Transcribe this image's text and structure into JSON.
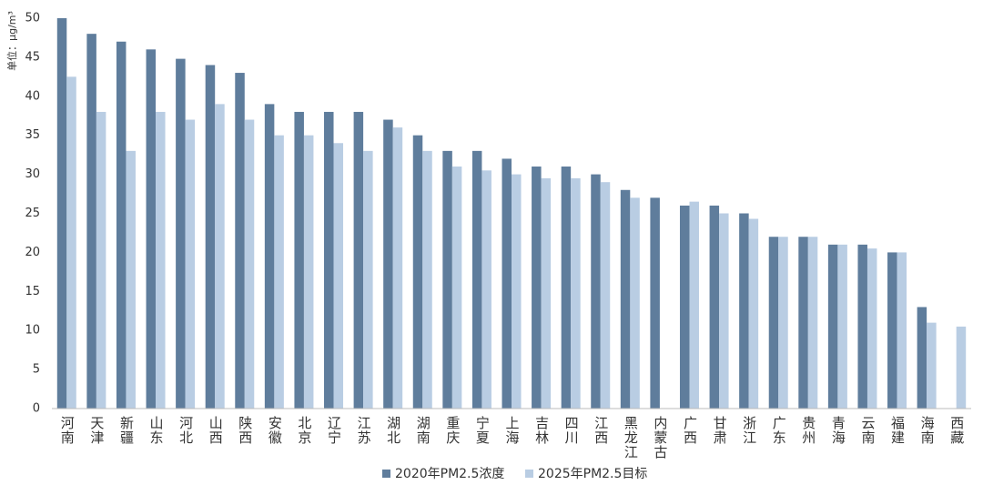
{
  "chart_data": {
    "type": "bar",
    "y_axis_label": "单位：μg/m³",
    "categories": [
      "河南",
      "天津",
      "新疆",
      "山东",
      "河北",
      "山西",
      "陕西",
      "安徽",
      "北京",
      "辽宁",
      "江苏",
      "湖北",
      "湖南",
      "重庆",
      "宁夏",
      "上海",
      "吉林",
      "四川",
      "江西",
      "黑龙江",
      "内蒙古",
      "广西",
      "甘肃",
      "浙江",
      "广东",
      "贵州",
      "青海",
      "云南",
      "福建",
      "海南",
      "西藏"
    ],
    "series": [
      {
        "name": "2020年PM2.5浓度",
        "color": "#5f7d9c",
        "values": [
          50,
          48,
          47,
          46,
          44.8,
          44,
          43,
          39,
          38,
          38,
          38,
          37,
          35,
          33,
          33,
          32,
          31,
          31,
          30,
          28,
          27,
          26,
          26,
          25,
          22,
          22,
          21,
          21,
          20,
          13,
          null
        ]
      },
      {
        "name": "2025年PM2.5目标",
        "color": "#b9cde3",
        "values": [
          42.5,
          38,
          33,
          38,
          37,
          39,
          37,
          35,
          35,
          34,
          33,
          36,
          33,
          31,
          30.5,
          30,
          29.5,
          29.5,
          29,
          27,
          null,
          26.5,
          25,
          24.3,
          22,
          22,
          21,
          20.5,
          20,
          11,
          10.5
        ]
      }
    ],
    "ylim": [
      0,
      50
    ],
    "yticks": [
      0,
      5,
      10,
      15,
      20,
      25,
      30,
      35,
      40,
      45,
      50
    ],
    "legend": "bottom"
  }
}
